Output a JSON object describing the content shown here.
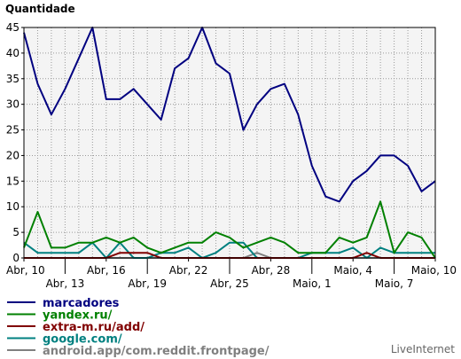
{
  "chart_data": {
    "type": "line",
    "title": "Quantidade",
    "xlabel": "",
    "ylabel": "",
    "ylim": [
      0,
      45
    ],
    "yticks": [
      0,
      5,
      10,
      15,
      20,
      25,
      30,
      35,
      40,
      45
    ],
    "grid": true,
    "x_labels": [
      {
        "index": 0,
        "label": "Abr, 10",
        "row": 1
      },
      {
        "index": 3,
        "label": "Abr, 13",
        "row": 2
      },
      {
        "index": 6,
        "label": "Abr, 16",
        "row": 1
      },
      {
        "index": 9,
        "label": "Abr, 19",
        "row": 2
      },
      {
        "index": 12,
        "label": "Abr, 22",
        "row": 1
      },
      {
        "index": 15,
        "label": "Abr, 25",
        "row": 2
      },
      {
        "index": 18,
        "label": "Abr, 28",
        "row": 1
      },
      {
        "index": 21,
        "label": "Maio, 1",
        "row": 2
      },
      {
        "index": 24,
        "label": "Maio, 4",
        "row": 1
      },
      {
        "index": 27,
        "label": "Maio, 7",
        "row": 2
      },
      {
        "index": 30,
        "label": "Maio, 10",
        "row": 1
      }
    ],
    "series": [
      {
        "name": "marcadores",
        "color": "#000080",
        "values": [
          44,
          34,
          28,
          33,
          39,
          45,
          31,
          31,
          33,
          30,
          27,
          37,
          39,
          45,
          38,
          36,
          25,
          30,
          33,
          34,
          28,
          18,
          12,
          11,
          15,
          17,
          20,
          20,
          18,
          13,
          15
        ]
      },
      {
        "name": "yandex.ru/",
        "color": "#008000",
        "values": [
          2,
          9,
          2,
          2,
          3,
          3,
          4,
          3,
          4,
          2,
          1,
          2,
          3,
          3,
          5,
          4,
          2,
          3,
          4,
          3,
          1,
          1,
          1,
          4,
          3,
          4,
          11,
          1,
          5,
          4,
          0
        ]
      },
      {
        "name": "extra-m.ru/add/",
        "color": "#800000",
        "values": [
          0,
          0,
          0,
          0,
          0,
          0,
          0,
          1,
          1,
          1,
          0,
          0,
          0,
          0,
          0,
          0,
          0,
          0,
          0,
          0,
          0,
          0,
          0,
          0,
          0,
          1,
          0,
          0,
          0,
          0,
          0
        ]
      },
      {
        "name": "google.com/",
        "color": "#008080",
        "values": [
          3,
          1,
          1,
          1,
          1,
          3,
          0,
          3,
          0,
          0,
          1,
          1,
          2,
          0,
          1,
          3,
          3,
          0,
          0,
          0,
          0,
          1,
          1,
          1,
          2,
          0,
          2,
          1,
          1,
          1,
          1
        ]
      },
      {
        "name": "android.app/com.reddit.frontpage/",
        "color": "#808080",
        "values": [
          0,
          0,
          0,
          0,
          0,
          0,
          0,
          0,
          0,
          0,
          0,
          0,
          0,
          0,
          0,
          0,
          0,
          1,
          0,
          0,
          0,
          0,
          0,
          0,
          0,
          0,
          0,
          0,
          0,
          0,
          0
        ]
      }
    ]
  },
  "brand": "LiveInternet"
}
